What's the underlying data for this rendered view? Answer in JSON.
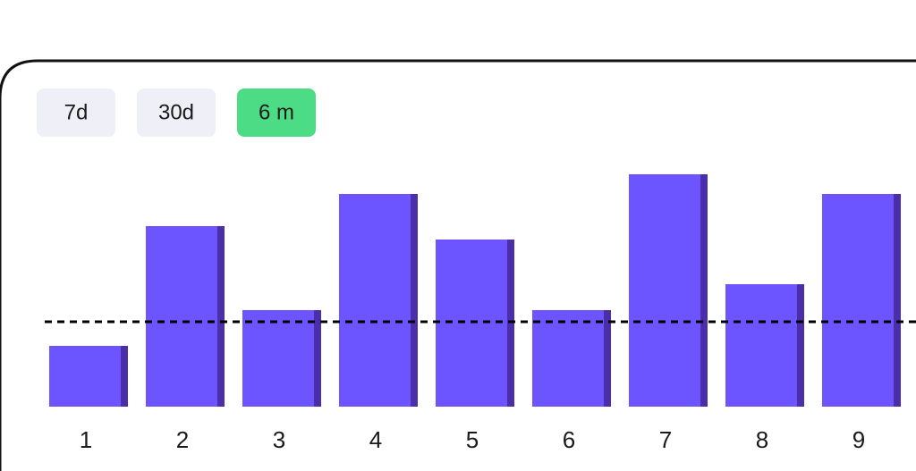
{
  "chart_data": {
    "type": "bar",
    "range_options": [
      "7d",
      "30d",
      "6 m"
    ],
    "active_range": 2,
    "categories": [
      "1",
      "2",
      "3",
      "4",
      "5",
      "6",
      "7",
      "8",
      "9"
    ],
    "values": [
      68,
      202,
      108,
      238,
      187,
      108,
      260,
      137,
      238
    ],
    "reference_line": 95,
    "ylim": [
      0,
      260
    ],
    "color": "#6c55ff",
    "shade_color": "#4a2fa8",
    "tab_color": "#efeff7",
    "active_tab_color": "#4cdc86"
  }
}
